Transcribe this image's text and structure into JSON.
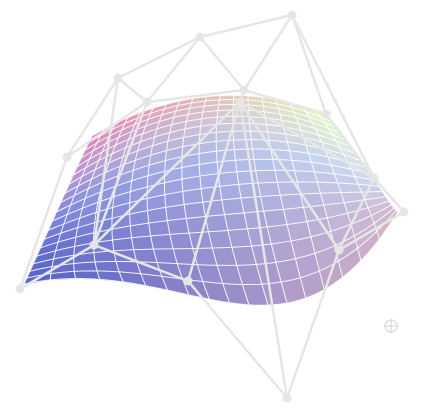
{
  "scene": {
    "name": "bezier-surface-view",
    "patch": {
      "u_segments": 18,
      "v_segments": 18
    },
    "colors": {
      "control_net": "#e6e6e6",
      "grid_lines": "#ffffff",
      "corner_top_left": "#e86da8",
      "corner_bottom_left": "#5560c8",
      "corner_bottom_right": "#d8b3c8",
      "corner_top_right": "#e2ffb2",
      "mid_left": "#6f78d6",
      "mid_right": "#c8d8f0",
      "crosshair": "#d0d0d0"
    },
    "icons": {
      "crosshair": "crosshair-icon"
    }
  }
}
